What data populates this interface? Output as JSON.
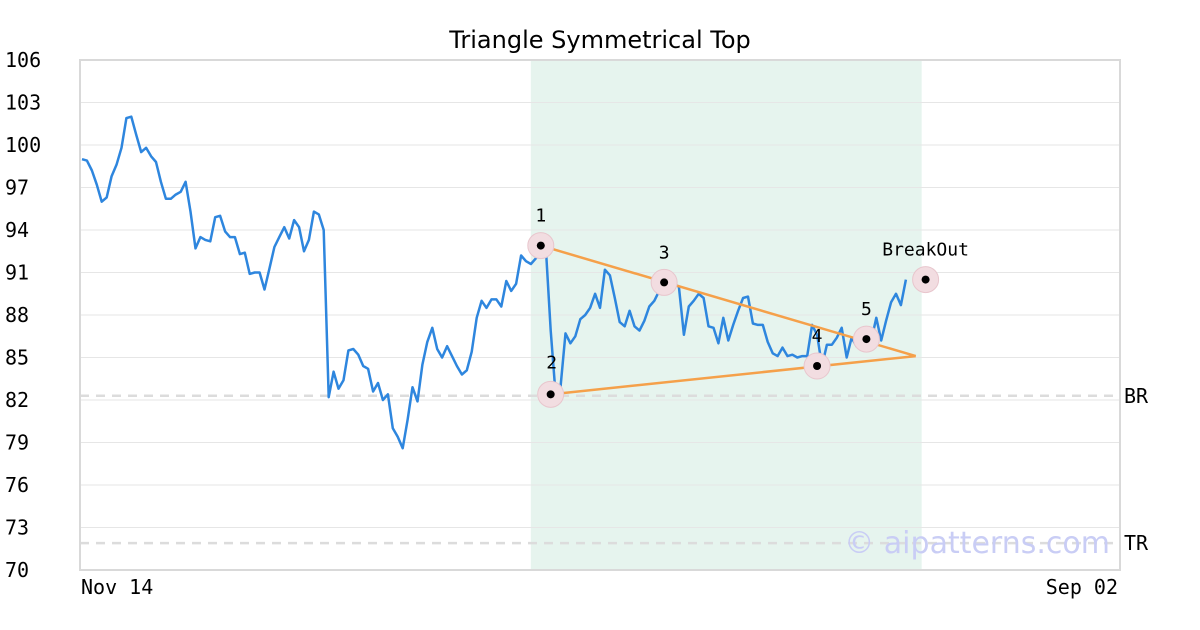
{
  "chart_data": {
    "type": "line",
    "title": "Triangle Symmetrical Top",
    "ylim": [
      70,
      106
    ],
    "yticks": [
      "106",
      "103",
      "100",
      "97",
      "94",
      "91",
      "88",
      "85",
      "82",
      "79",
      "76",
      "73",
      "70"
    ],
    "x_labels": [
      "Nov 14",
      "Sep 02"
    ],
    "grid": true,
    "series": [
      {
        "color": "#2e86de",
        "values": [
          99.0,
          98.9,
          98.2,
          97.2,
          96.0,
          96.3,
          97.8,
          98.6,
          99.8,
          101.9,
          102.0,
          100.7,
          99.5,
          99.8,
          99.2,
          98.8,
          97.4,
          96.2,
          96.2,
          96.5,
          96.7,
          97.4,
          95.3,
          92.7,
          93.5,
          93.3,
          93.2,
          94.9,
          95.0,
          93.9,
          93.5,
          93.5,
          92.3,
          92.4,
          90.9,
          91.0,
          91.0,
          89.8,
          91.3,
          92.8,
          93.5,
          94.2,
          93.4,
          94.7,
          94.2,
          92.5,
          93.3,
          95.3,
          95.1,
          94.0,
          82.2,
          84.0,
          82.8,
          83.4,
          85.5,
          85.6,
          85.2,
          84.4,
          84.2,
          82.6,
          83.2,
          82.0,
          82.4,
          80.0,
          79.4,
          78.6,
          80.6,
          82.9,
          81.9,
          84.5,
          86.1,
          87.1,
          85.6,
          85.0,
          85.8,
          85.1,
          84.4,
          83.8,
          84.1,
          85.4,
          87.8,
          89.0,
          88.5,
          89.1,
          89.1,
          88.6,
          90.4,
          89.7,
          90.2,
          92.2,
          91.8,
          91.6,
          92.0,
          92.4,
          92.9,
          86.9,
          82.4,
          82.9,
          86.7,
          86.0,
          86.5,
          87.7,
          88.0,
          88.5,
          89.5,
          88.5,
          91.2,
          90.8,
          89.2,
          87.5,
          87.2,
          88.3,
          87.2,
          86.9,
          87.6,
          88.6,
          89.0,
          89.7,
          90.0,
          89.7,
          90.2,
          90.0,
          86.6,
          88.6,
          89.0,
          89.5,
          89.2,
          87.2,
          87.1,
          86.0,
          87.8,
          86.2,
          87.3,
          88.3,
          89.2,
          89.3,
          87.4,
          87.3,
          87.3,
          86.1,
          85.3,
          85.1,
          85.7,
          85.1,
          85.2,
          85.0,
          85.1,
          85.1,
          87.3,
          86.6,
          84.4,
          85.9,
          85.9,
          86.4,
          87.1,
          85.0,
          86.4,
          85.8,
          86.1,
          86.3,
          86.2,
          87.8,
          86.2,
          87.6,
          88.9,
          89.5,
          88.7,
          90.5
        ]
      }
    ],
    "highlight_region": {
      "start_index": 93,
      "end_index": 170,
      "color": "#e6f4ee"
    },
    "pattern_points": [
      {
        "label": "1",
        "index": 93,
        "value": 92.9
      },
      {
        "label": "2",
        "index": 95,
        "value": 82.4
      },
      {
        "label": "3",
        "index": 118,
        "value": 90.3
      },
      {
        "label": "4",
        "index": 149,
        "value": 84.4
      },
      {
        "label": "5",
        "index": 159,
        "value": 86.3
      },
      {
        "label": "BreakOut",
        "index": 171,
        "value": 90.5
      }
    ],
    "trendlines": [
      {
        "color": "#f5a04a",
        "from": {
          "index": 93,
          "value": 92.9
        },
        "to": {
          "index": 169,
          "value": 85.1
        }
      },
      {
        "color": "#f5a04a",
        "from": {
          "index": 95,
          "value": 82.4
        },
        "to": {
          "index": 169,
          "value": 85.1
        }
      }
    ],
    "reference_lines": [
      {
        "label": "BR",
        "value": 82.3
      },
      {
        "label": "TR",
        "value": 71.9
      }
    ]
  },
  "watermark": "© aipatterns.com"
}
